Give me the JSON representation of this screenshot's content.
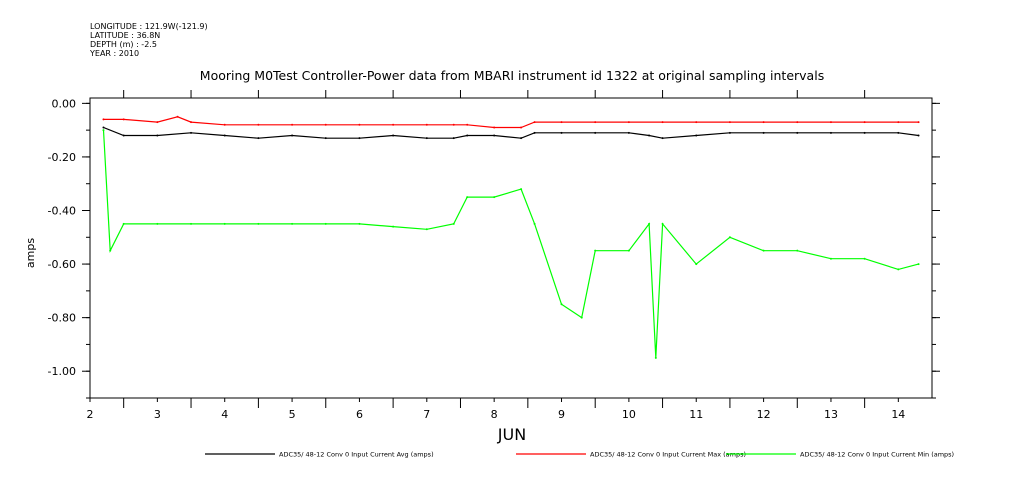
{
  "metadata": {
    "lines": [
      "LONGITUDE : 121.9W(-121.9)",
      "LATITUDE : 36.8N",
      "DEPTH (m) : -2.5",
      "YEAR : 2010"
    ]
  },
  "chart_data": {
    "type": "line",
    "title": "Mooring M0Test Controller-Power data from MBARI instrument id 1322 at original sampling intervals",
    "xlabel": "JUN",
    "ylabel": "amps",
    "xlim": [
      2.0,
      14.5
    ],
    "ylim": [
      -1.1,
      0.02
    ],
    "x_ticks": [
      2,
      3,
      4,
      5,
      6,
      7,
      8,
      9,
      10,
      11,
      12,
      13,
      14
    ],
    "y_ticks": [
      0.0,
      -0.2,
      -0.4,
      -0.6,
      -0.8,
      -1.0
    ],
    "y_tick_labels": [
      "0.00",
      "-0.20",
      "-0.40",
      "-0.60",
      "-0.80",
      "-1.00"
    ],
    "grid": false,
    "legend_position": "bottom",
    "series": [
      {
        "name": "ADC35/ 48-12 Conv 0 Input Current Avg (amps)",
        "color": "#000000",
        "x": [
          2.2,
          2.5,
          3.0,
          3.5,
          4.0,
          4.5,
          5.0,
          5.5,
          6.0,
          6.5,
          7.0,
          7.4,
          7.6,
          8.0,
          8.4,
          8.6,
          9.0,
          9.5,
          10.0,
          10.3,
          10.5,
          11.0,
          11.5,
          12.0,
          12.5,
          13.0,
          13.5,
          14.0,
          14.3
        ],
        "y": [
          -0.09,
          -0.12,
          -0.12,
          -0.11,
          -0.12,
          -0.13,
          -0.12,
          -0.13,
          -0.13,
          -0.12,
          -0.13,
          -0.13,
          -0.12,
          -0.12,
          -0.13,
          -0.11,
          -0.11,
          -0.11,
          -0.11,
          -0.12,
          -0.13,
          -0.12,
          -0.11,
          -0.11,
          -0.11,
          -0.11,
          -0.11,
          -0.11,
          -0.12
        ]
      },
      {
        "name": "ADC35/ 48-12 Conv 0 Input Current Max (amps)",
        "color": "#ff0000",
        "x": [
          2.2,
          2.5,
          3.0,
          3.3,
          3.5,
          4.0,
          4.5,
          5.0,
          5.5,
          6.0,
          6.5,
          7.0,
          7.4,
          7.6,
          8.0,
          8.4,
          8.6,
          9.0,
          9.5,
          10.0,
          10.5,
          11.0,
          11.5,
          12.0,
          12.5,
          13.0,
          13.5,
          14.0,
          14.3
        ],
        "y": [
          -0.06,
          -0.06,
          -0.07,
          -0.05,
          -0.07,
          -0.08,
          -0.08,
          -0.08,
          -0.08,
          -0.08,
          -0.08,
          -0.08,
          -0.08,
          -0.08,
          -0.09,
          -0.09,
          -0.07,
          -0.07,
          -0.07,
          -0.07,
          -0.07,
          -0.07,
          -0.07,
          -0.07,
          -0.07,
          -0.07,
          -0.07,
          -0.07,
          -0.07
        ]
      },
      {
        "name": "ADC35/ 48-12 Conv 0 Input Current Min (amps)",
        "color": "#00ff00",
        "x": [
          2.2,
          2.3,
          2.5,
          3.0,
          3.5,
          4.0,
          4.5,
          5.0,
          5.5,
          6.0,
          6.5,
          7.0,
          7.4,
          7.6,
          8.0,
          8.4,
          8.6,
          9.0,
          9.3,
          9.5,
          10.0,
          10.3,
          10.4,
          10.5,
          11.0,
          11.5,
          12.0,
          12.5,
          13.0,
          13.5,
          14.0,
          14.3
        ],
        "y": [
          -0.1,
          -0.55,
          -0.45,
          -0.45,
          -0.45,
          -0.45,
          -0.45,
          -0.45,
          -0.45,
          -0.45,
          -0.46,
          -0.47,
          -0.45,
          -0.35,
          -0.35,
          -0.32,
          -0.45,
          -0.75,
          -0.8,
          -0.55,
          -0.55,
          -0.45,
          -0.95,
          -0.45,
          -0.6,
          -0.5,
          -0.55,
          -0.55,
          -0.58,
          -0.58,
          -0.62,
          -0.6
        ]
      }
    ]
  }
}
